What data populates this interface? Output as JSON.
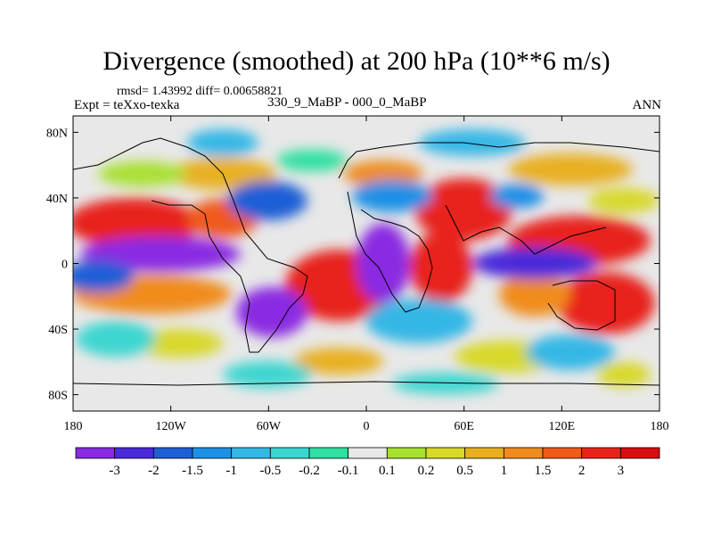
{
  "chart_data": {
    "type": "heatmap",
    "title": "Divergence (smoothed) at 200 hPa (10**6 m/s)",
    "stats_text": "rmsd= 1.43992 diff= 0.00658821",
    "experiment": "Expt = teXxo-texka",
    "comparison": "330_9_MaBP - 000_0_MaBP",
    "season": "ANN",
    "x_axis": {
      "range": [
        -180,
        180
      ],
      "ticks": [
        -180,
        -120,
        -60,
        0,
        60,
        120,
        180
      ],
      "tick_labels": [
        "180",
        "120W",
        "60W",
        "0",
        "60E",
        "120E",
        "180"
      ]
    },
    "y_axis": {
      "range": [
        -90,
        90
      ],
      "ticks": [
        80,
        40,
        0,
        -40,
        -80
      ],
      "tick_labels": [
        "80N",
        "40N",
        "0",
        "40S",
        "80S"
      ]
    },
    "colorbar": {
      "labels": [
        "-3",
        "-2",
        "-1.5",
        "-1",
        "-0.5",
        "-0.2",
        "-0.1",
        "0.1",
        "0.2",
        "0.5",
        "1",
        "1.5",
        "2",
        "3"
      ],
      "colors": [
        "#8a2be2",
        "#4b2ad9",
        "#1f5fd6",
        "#1e90e6",
        "#35b7e6",
        "#3cd6d0",
        "#2fe0a0",
        "#e8e8e8",
        "#a8e030",
        "#d8d82a",
        "#e8b020",
        "#f08c1e",
        "#f05a1a",
        "#e8241a",
        "#d80e12"
      ]
    }
  }
}
